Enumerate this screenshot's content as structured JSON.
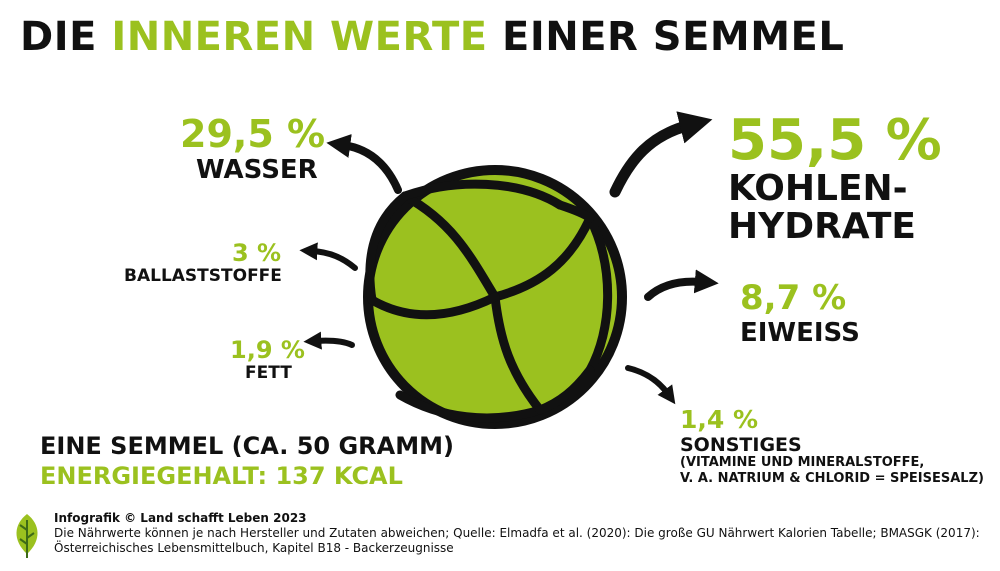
{
  "title": {
    "part1": "DIE ",
    "highlight": "INNEREN WERTE",
    "part2": " EINER SEMMEL"
  },
  "items": {
    "wasser": {
      "percent": "29,5 %",
      "label": "WASSER"
    },
    "ballaststoffe": {
      "percent": "3 %",
      "label": "BALLASTSTOFFE"
    },
    "fett": {
      "percent": "1,9 %",
      "label": "FETT"
    },
    "kohlenhydrate": {
      "percent": "55,5 %",
      "label_line1": "KOHLEN-",
      "label_line2": "HYDRATE"
    },
    "eiweiss": {
      "percent": "8,7 %",
      "label": "EIWEISS"
    },
    "sonstiges": {
      "percent": "1,4 %",
      "label": "SONSTIGES",
      "detail_line1": "(VITAMINE UND MINERALSTOFFE,",
      "detail_line2": "V. A. NATRIUM & CHLORID = SPEISESALZ)"
    }
  },
  "summary": {
    "line1": "EINE SEMMEL (CA. 50 GRAMM)",
    "line2": "ENERGIEGEHALT: 137 KCAL"
  },
  "footer": {
    "credit": "Infografik © Land schafft Leben 2023",
    "note": "Die Nährwerte können je nach Hersteller und Zutaten abweichen; Quelle: Elmadfa et al. (2020): Die große GU Nährwert Kalorien Tabelle; BMASGK (2017): Österreichisches Lebensmittelbuch, Kapitel B18 - Backerzeugnisse"
  },
  "colors": {
    "accent": "#9bc11f",
    "text": "#111111",
    "background": "#ffffff"
  },
  "icons": {
    "bread": "kaiser-roll-icon",
    "logo": "leaf-logo-icon",
    "arrows": "curved-arrow-icon"
  }
}
